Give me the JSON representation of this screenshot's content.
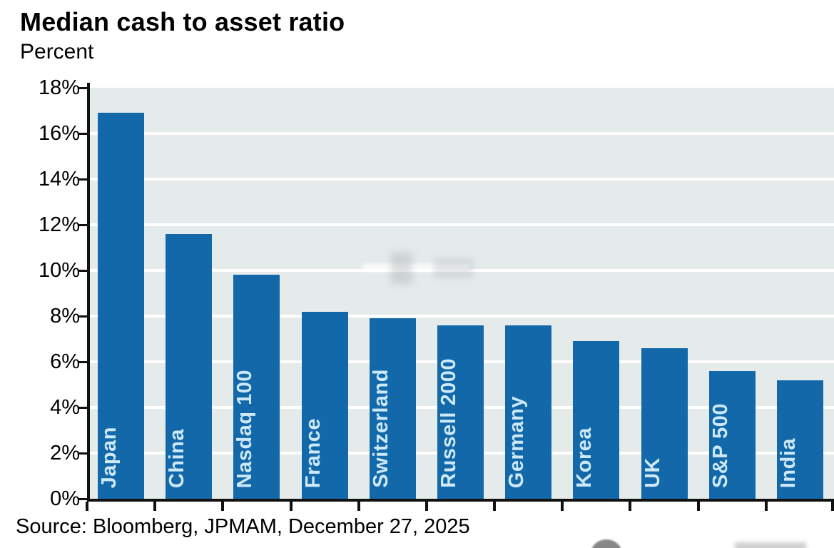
{
  "header": {
    "title": "Median cash to asset ratio",
    "subtitle": "Percent"
  },
  "source_line": "Source: Bloomberg, JPMAM, December 27, 2025",
  "colors": {
    "bar": "#1268A8",
    "bar_label_text": "#CDE8F7",
    "plot_background": "#E4EBEA",
    "gridline": "#FFFFFF",
    "axis": "#111111",
    "text": "#000000",
    "page_background": "#FFFFFF"
  },
  "chart_data": {
    "type": "bar",
    "title": "Median cash to asset ratio",
    "ylabel": "Percent",
    "categories": [
      "Japan",
      "China",
      "Nasdaq 100",
      "France",
      "Switzerland",
      "Russell 2000",
      "Germany",
      "Korea",
      "UK",
      "S&P 500",
      "India"
    ],
    "values": [
      16.9,
      11.6,
      9.8,
      8.2,
      7.9,
      7.6,
      7.6,
      6.9,
      6.6,
      5.6,
      5.2
    ],
    "ylim": [
      0,
      18
    ],
    "ytick_step": 2,
    "ytick_labels": [
      "0%",
      "2%",
      "4%",
      "6%",
      "8%",
      "10%",
      "12%",
      "14%",
      "16%",
      "18%"
    ],
    "grid": true,
    "gridline_orientation": "horizontal",
    "legend": "none",
    "bar_label_position": "inside-bottom-vertical"
  }
}
